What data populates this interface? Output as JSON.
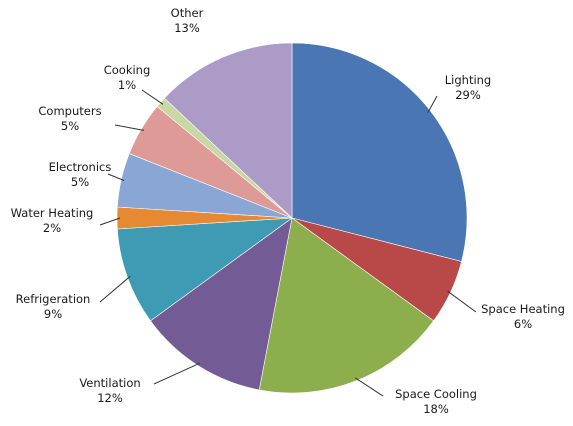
{
  "chart_data": {
    "type": "pie",
    "start_angle_deg": 0,
    "direction": "clockwise",
    "legend": "none",
    "slices": [
      {
        "label": "Lighting",
        "value": 29,
        "value_label": "29%",
        "color": "#4a76b4"
      },
      {
        "label": "Space Heating",
        "value": 6,
        "value_label": "6%",
        "color": "#b94848"
      },
      {
        "label": "Space Cooling",
        "value": 18,
        "value_label": "18%",
        "color": "#8cae4d"
      },
      {
        "label": "Ventilation",
        "value": 12,
        "value_label": "12%",
        "color": "#735c95"
      },
      {
        "label": "Refrigeration",
        "value": 9,
        "value_label": "9%",
        "color": "#3f9bb4"
      },
      {
        "label": "Water Heating",
        "value": 2,
        "value_label": "2%",
        "color": "#e58a33"
      },
      {
        "label": "Electronics",
        "value": 5,
        "value_label": "5%",
        "color": "#8aa6d4"
      },
      {
        "label": "Computers",
        "value": 5,
        "value_label": "5%",
        "color": "#de9a97"
      },
      {
        "label": "Cooking",
        "value": 1,
        "value_label": "1%",
        "color": "#c8d7a3"
      },
      {
        "label": "Other",
        "value": 13,
        "value_label": "13%",
        "color": "#ab9bc6"
      }
    ]
  }
}
